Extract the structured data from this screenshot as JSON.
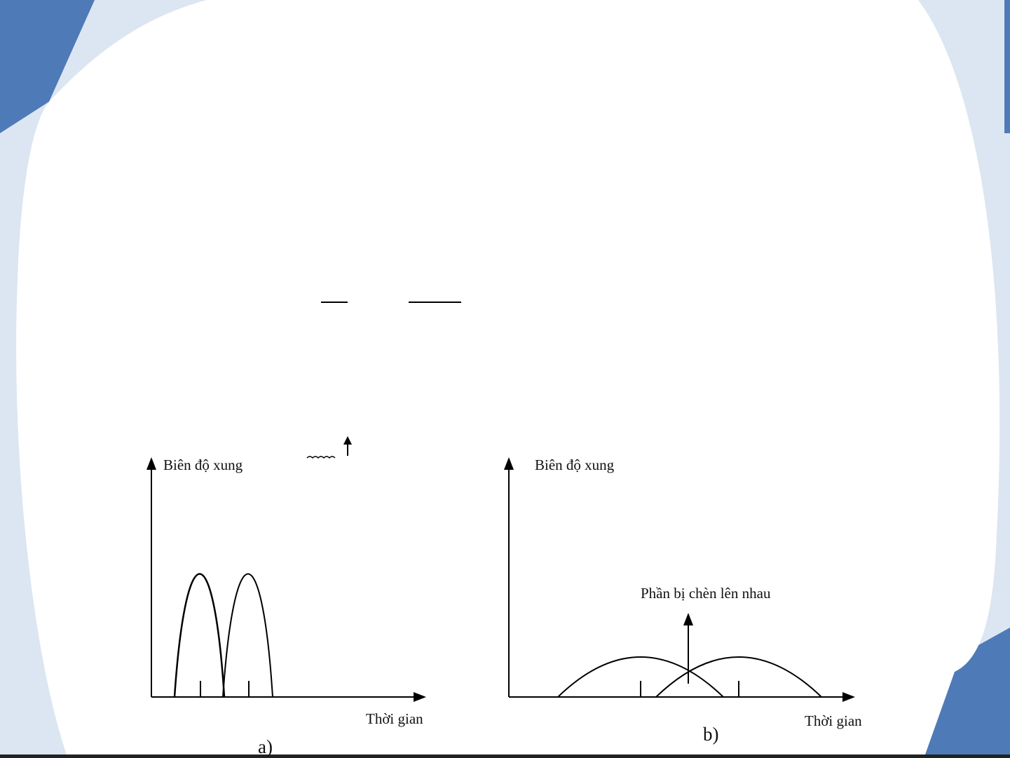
{
  "theme": {
    "background": "#dce6f2",
    "accent": "#4f7ab8",
    "panel": "#ffffff",
    "stroke": "#000000"
  },
  "diagram_a": {
    "y_axis_label": "Biên độ xung",
    "x_axis_label": "Thời gian",
    "caption": "a)"
  },
  "diagram_b": {
    "y_axis_label": "Biên độ xung",
    "x_axis_label": "Thời gian",
    "overlap_label": "Phần bị chèn lên nhau",
    "caption": "b)"
  }
}
